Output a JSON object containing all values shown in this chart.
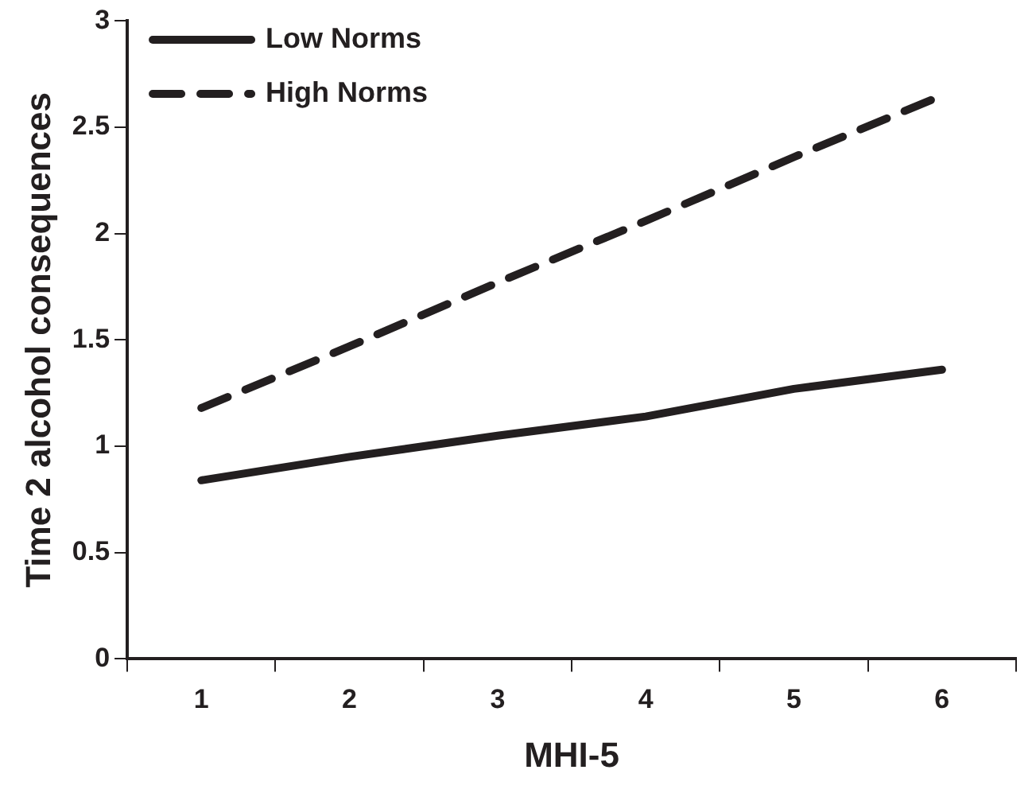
{
  "chart_data": {
    "type": "line",
    "xlabel": "MHI-5",
    "ylabel": "Time 2 alcohol consequences",
    "categories": [
      "1",
      "2",
      "3",
      "4",
      "5",
      "6"
    ],
    "series": [
      {
        "name": "Low Norms",
        "color": "#231f20",
        "line_style": "solid",
        "values": [
          0.84,
          0.95,
          1.05,
          1.14,
          1.27,
          1.36
        ]
      },
      {
        "name": "High Norms",
        "color": "#231f20",
        "line_style": "dashed",
        "values": [
          1.18,
          1.47,
          1.77,
          2.06,
          2.36,
          2.65
        ]
      }
    ],
    "ylim": [
      0,
      3
    ],
    "yticks": [
      0,
      0.5,
      1,
      1.5,
      2,
      2.5,
      3
    ],
    "grid": false,
    "legend": "top left",
    "marker": "none"
  }
}
